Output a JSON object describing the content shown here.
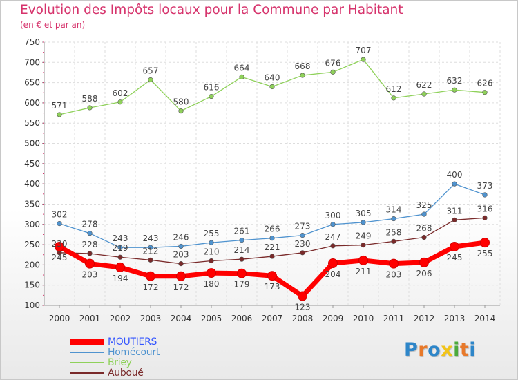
{
  "chart_data": {
    "type": "line",
    "title": "Evolution des Impôts locaux pour la Commune par Habitant",
    "subtitle": "(en € et par an)",
    "xlabel": "",
    "ylabel": "",
    "x": [
      "2000",
      "2001",
      "2002",
      "2003",
      "2004",
      "2005",
      "2006",
      "2007",
      "2008",
      "2009",
      "2010",
      "2011",
      "2012",
      "2013",
      "2014"
    ],
    "ylim": [
      100,
      750
    ],
    "yticks": [
      100,
      150,
      200,
      250,
      300,
      350,
      400,
      450,
      500,
      550,
      600,
      650,
      700,
      750
    ],
    "grid": true,
    "legend_position": "bottom-left",
    "series": [
      {
        "name": "MOUTIERS",
        "color": "#ff0000",
        "emphasis": true,
        "labels_below": true,
        "values": [
          245,
          203,
          194,
          172,
          172,
          180,
          179,
          173,
          123,
          204,
          211,
          203,
          206,
          245,
          255
        ]
      },
      {
        "name": "Homécourt",
        "color": "#4f93cf",
        "emphasis": false,
        "labels_below": false,
        "values": [
          302,
          278,
          243,
          243,
          246,
          255,
          261,
          266,
          273,
          300,
          305,
          314,
          325,
          400,
          373
        ]
      },
      {
        "name": "Briey",
        "color": "#8fd15a",
        "emphasis": false,
        "labels_below": false,
        "values": [
          571,
          588,
          602,
          657,
          580,
          616,
          664,
          640,
          668,
          676,
          707,
          612,
          622,
          632,
          626
        ]
      },
      {
        "name": "Auboué",
        "color": "#7a2a2a",
        "emphasis": false,
        "labels_below": false,
        "values": [
          230,
          228,
          219,
          212,
          203,
          210,
          214,
          221,
          230,
          247,
          249,
          258,
          268,
          311,
          316
        ]
      }
    ]
  },
  "logo": {
    "letters": [
      "P",
      "r",
      "o",
      "x",
      "i",
      "t",
      "i"
    ],
    "colors": [
      "#2e86c9",
      "#e8792a",
      "#2e86c9",
      "#f2c418",
      "#4caa3c",
      "#e8792a",
      "#2e86c9"
    ]
  }
}
